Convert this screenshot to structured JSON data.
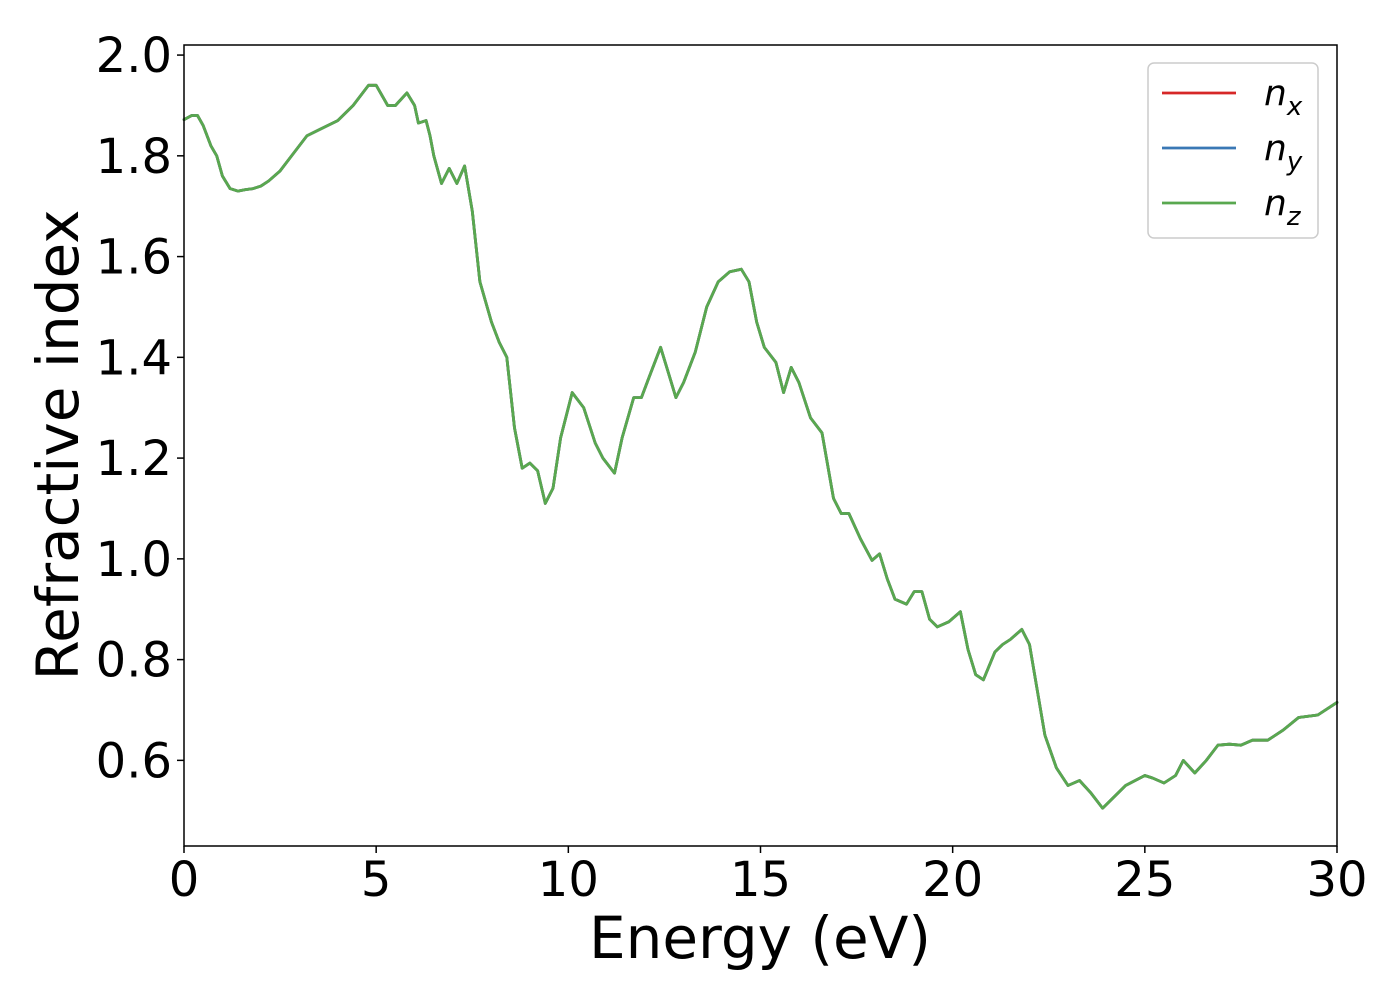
{
  "chart_data": {
    "type": "line",
    "xlabel": "Energy (eV)",
    "ylabel": "Refractive index",
    "xlim": [
      0,
      30
    ],
    "ylim": [
      0.43,
      2.02
    ],
    "xticks": [
      0,
      5,
      10,
      15,
      20,
      25,
      30
    ],
    "yticks": [
      0.6,
      0.8,
      1.0,
      1.2,
      1.4,
      1.6,
      1.8,
      2.0
    ],
    "legend_placement": "top-right",
    "grid": false,
    "series": [
      {
        "name": "n",
        "sub": "x",
        "color": "#d62728",
        "x": [
          0,
          0.2,
          0.35,
          0.5,
          0.7,
          0.85,
          1.0,
          1.2,
          1.4,
          1.6,
          1.8,
          2.0,
          2.2,
          2.5,
          2.8,
          3.2,
          3.6,
          4.0,
          4.4,
          4.8,
          5.0,
          5.3,
          5.5,
          5.8,
          6.0,
          6.1,
          6.3,
          6.4,
          6.5,
          6.7,
          6.9,
          7.1,
          7.3,
          7.5,
          7.7,
          8.0,
          8.2,
          8.4,
          8.6,
          8.8,
          9.0,
          9.2,
          9.4,
          9.6,
          9.8,
          10.1,
          10.4,
          10.7,
          10.9,
          11.2,
          11.4,
          11.7,
          11.9,
          12.1,
          12.4,
          12.6,
          12.8,
          13.0,
          13.3,
          13.6,
          13.9,
          14.2,
          14.5,
          14.7,
          14.9,
          15.1,
          15.4,
          15.6,
          15.8,
          16.0,
          16.3,
          16.6,
          16.9,
          17.1,
          17.3,
          17.6,
          17.9,
          18.1,
          18.3,
          18.5,
          18.8,
          19.0,
          19.2,
          19.4,
          19.6,
          19.9,
          20.2,
          20.4,
          20.6,
          20.8,
          21.1,
          21.3,
          21.5,
          21.8,
          22.0,
          22.2,
          22.4,
          22.7,
          23.0,
          23.3,
          23.6,
          23.9,
          24.1,
          24.5,
          25.0,
          25.2,
          25.5,
          25.8,
          26.0,
          26.3,
          26.6,
          26.9,
          27.2,
          27.5,
          27.8,
          28.2,
          28.6,
          29.0,
          29.5,
          30.0
        ],
        "values": [
          1.872,
          1.88,
          1.88,
          1.86,
          1.82,
          1.8,
          1.76,
          1.735,
          1.73,
          1.733,
          1.735,
          1.74,
          1.75,
          1.77,
          1.8,
          1.84,
          1.855,
          1.87,
          1.9,
          1.94,
          1.94,
          1.9,
          1.9,
          1.925,
          1.9,
          1.865,
          1.87,
          1.84,
          1.8,
          1.745,
          1.775,
          1.745,
          1.78,
          1.69,
          1.55,
          1.47,
          1.43,
          1.4,
          1.26,
          1.18,
          1.19,
          1.175,
          1.11,
          1.14,
          1.24,
          1.33,
          1.3,
          1.23,
          1.2,
          1.17,
          1.24,
          1.32,
          1.32,
          1.36,
          1.42,
          1.37,
          1.32,
          1.35,
          1.41,
          1.5,
          1.55,
          1.57,
          1.575,
          1.55,
          1.47,
          1.42,
          1.39,
          1.33,
          1.38,
          1.35,
          1.28,
          1.25,
          1.12,
          1.09,
          1.09,
          1.04,
          0.997,
          1.01,
          0.96,
          0.92,
          0.91,
          0.935,
          0.935,
          0.88,
          0.865,
          0.875,
          0.895,
          0.82,
          0.77,
          0.76,
          0.815,
          0.83,
          0.84,
          0.86,
          0.83,
          0.74,
          0.65,
          0.585,
          0.55,
          0.56,
          0.535,
          0.505,
          0.52,
          0.55,
          0.57,
          0.565,
          0.555,
          0.57,
          0.6,
          0.575,
          0.6,
          0.63,
          0.632,
          0.63,
          0.64,
          0.64,
          0.66,
          0.685,
          0.69,
          0.715
        ]
      },
      {
        "name": "n",
        "sub": "y",
        "color": "#3a78b5",
        "x": [
          0,
          0.2,
          0.35,
          0.5,
          0.7,
          0.85,
          1.0,
          1.2,
          1.4,
          1.6,
          1.8,
          2.0,
          2.2,
          2.5,
          2.8,
          3.2,
          3.6,
          4.0,
          4.4,
          4.8,
          5.0,
          5.3,
          5.5,
          5.8,
          6.0,
          6.1,
          6.3,
          6.4,
          6.5,
          6.7,
          6.9,
          7.1,
          7.3,
          7.5,
          7.7,
          8.0,
          8.2,
          8.4,
          8.6,
          8.8,
          9.0,
          9.2,
          9.4,
          9.6,
          9.8,
          10.1,
          10.4,
          10.7,
          10.9,
          11.2,
          11.4,
          11.7,
          11.9,
          12.1,
          12.4,
          12.6,
          12.8,
          13.0,
          13.3,
          13.6,
          13.9,
          14.2,
          14.5,
          14.7,
          14.9,
          15.1,
          15.4,
          15.6,
          15.8,
          16.0,
          16.3,
          16.6,
          16.9,
          17.1,
          17.3,
          17.6,
          17.9,
          18.1,
          18.3,
          18.5,
          18.8,
          19.0,
          19.2,
          19.4,
          19.6,
          19.9,
          20.2,
          20.4,
          20.6,
          20.8,
          21.1,
          21.3,
          21.5,
          21.8,
          22.0,
          22.2,
          22.4,
          22.7,
          23.0,
          23.3,
          23.6,
          23.9,
          24.1,
          24.5,
          25.0,
          25.2,
          25.5,
          25.8,
          26.0,
          26.3,
          26.6,
          26.9,
          27.2,
          27.5,
          27.8,
          28.2,
          28.6,
          29.0,
          29.5,
          30.0
        ],
        "values": [
          1.872,
          1.88,
          1.88,
          1.86,
          1.82,
          1.8,
          1.76,
          1.735,
          1.73,
          1.733,
          1.735,
          1.74,
          1.75,
          1.77,
          1.8,
          1.84,
          1.855,
          1.87,
          1.9,
          1.94,
          1.94,
          1.9,
          1.9,
          1.925,
          1.9,
          1.865,
          1.87,
          1.84,
          1.8,
          1.745,
          1.775,
          1.745,
          1.78,
          1.69,
          1.55,
          1.47,
          1.43,
          1.4,
          1.26,
          1.18,
          1.19,
          1.175,
          1.11,
          1.14,
          1.24,
          1.33,
          1.3,
          1.23,
          1.2,
          1.17,
          1.24,
          1.32,
          1.32,
          1.36,
          1.42,
          1.37,
          1.32,
          1.35,
          1.41,
          1.5,
          1.55,
          1.57,
          1.575,
          1.55,
          1.47,
          1.42,
          1.39,
          1.33,
          1.38,
          1.35,
          1.28,
          1.25,
          1.12,
          1.09,
          1.09,
          1.04,
          0.997,
          1.01,
          0.96,
          0.92,
          0.91,
          0.935,
          0.935,
          0.88,
          0.865,
          0.875,
          0.895,
          0.82,
          0.77,
          0.76,
          0.815,
          0.83,
          0.84,
          0.86,
          0.83,
          0.74,
          0.65,
          0.585,
          0.55,
          0.56,
          0.535,
          0.505,
          0.52,
          0.55,
          0.57,
          0.565,
          0.555,
          0.57,
          0.6,
          0.575,
          0.6,
          0.63,
          0.632,
          0.63,
          0.64,
          0.64,
          0.66,
          0.685,
          0.69,
          0.715
        ]
      },
      {
        "name": "n",
        "sub": "z",
        "color": "#59a84f",
        "x": [
          0,
          0.2,
          0.35,
          0.5,
          0.7,
          0.85,
          1.0,
          1.2,
          1.4,
          1.6,
          1.8,
          2.0,
          2.2,
          2.5,
          2.8,
          3.2,
          3.6,
          4.0,
          4.4,
          4.8,
          5.0,
          5.3,
          5.5,
          5.8,
          6.0,
          6.1,
          6.3,
          6.4,
          6.5,
          6.7,
          6.9,
          7.1,
          7.3,
          7.5,
          7.7,
          8.0,
          8.2,
          8.4,
          8.6,
          8.8,
          9.0,
          9.2,
          9.4,
          9.6,
          9.8,
          10.1,
          10.4,
          10.7,
          10.9,
          11.2,
          11.4,
          11.7,
          11.9,
          12.1,
          12.4,
          12.6,
          12.8,
          13.0,
          13.3,
          13.6,
          13.9,
          14.2,
          14.5,
          14.7,
          14.9,
          15.1,
          15.4,
          15.6,
          15.8,
          16.0,
          16.3,
          16.6,
          16.9,
          17.1,
          17.3,
          17.6,
          17.9,
          18.1,
          18.3,
          18.5,
          18.8,
          19.0,
          19.2,
          19.4,
          19.6,
          19.9,
          20.2,
          20.4,
          20.6,
          20.8,
          21.1,
          21.3,
          21.5,
          21.8,
          22.0,
          22.2,
          22.4,
          22.7,
          23.0,
          23.3,
          23.6,
          23.9,
          24.1,
          24.5,
          25.0,
          25.2,
          25.5,
          25.8,
          26.0,
          26.3,
          26.6,
          26.9,
          27.2,
          27.5,
          27.8,
          28.2,
          28.6,
          29.0,
          29.5,
          30.0
        ],
        "values": [
          1.872,
          1.88,
          1.88,
          1.86,
          1.82,
          1.8,
          1.76,
          1.735,
          1.73,
          1.733,
          1.735,
          1.74,
          1.75,
          1.77,
          1.8,
          1.84,
          1.855,
          1.87,
          1.9,
          1.94,
          1.94,
          1.9,
          1.9,
          1.925,
          1.9,
          1.865,
          1.87,
          1.84,
          1.8,
          1.745,
          1.775,
          1.745,
          1.78,
          1.69,
          1.55,
          1.47,
          1.43,
          1.4,
          1.26,
          1.18,
          1.19,
          1.175,
          1.11,
          1.14,
          1.24,
          1.33,
          1.3,
          1.23,
          1.2,
          1.17,
          1.24,
          1.32,
          1.32,
          1.36,
          1.42,
          1.37,
          1.32,
          1.35,
          1.41,
          1.5,
          1.55,
          1.57,
          1.575,
          1.55,
          1.47,
          1.42,
          1.39,
          1.33,
          1.38,
          1.35,
          1.28,
          1.25,
          1.12,
          1.09,
          1.09,
          1.04,
          0.997,
          1.01,
          0.96,
          0.92,
          0.91,
          0.935,
          0.935,
          0.88,
          0.865,
          0.875,
          0.895,
          0.82,
          0.77,
          0.76,
          0.815,
          0.83,
          0.84,
          0.86,
          0.83,
          0.74,
          0.65,
          0.585,
          0.55,
          0.56,
          0.535,
          0.505,
          0.52,
          0.55,
          0.57,
          0.565,
          0.555,
          0.57,
          0.6,
          0.575,
          0.6,
          0.63,
          0.632,
          0.63,
          0.64,
          0.64,
          0.66,
          0.685,
          0.69,
          0.715
        ]
      }
    ]
  }
}
